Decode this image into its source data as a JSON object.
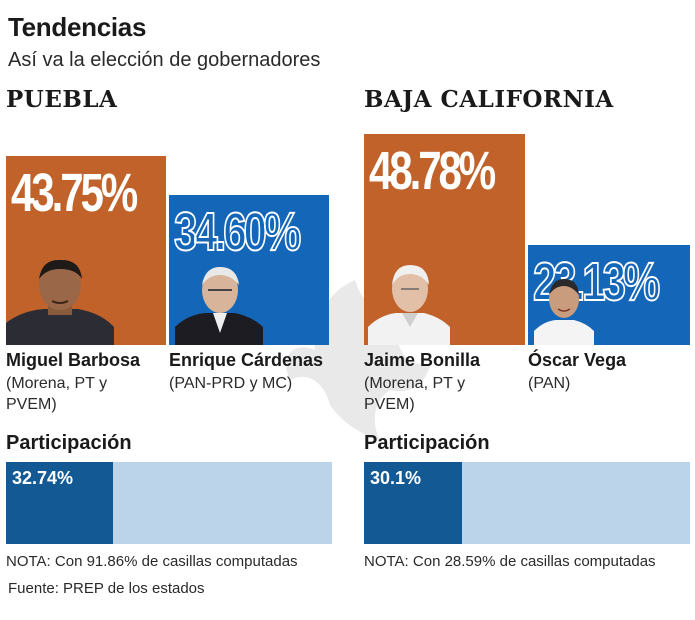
{
  "title": "Tendencias",
  "subtitle": "Así va la elección de gobernadores",
  "colors": {
    "coalition_morena": "#c0622a",
    "coalition_pan": "#1366b8",
    "participation": "#135a94",
    "participation_track": "#bcd4ea"
  },
  "chart_data": [
    {
      "type": "bar",
      "title": "PUEBLA",
      "categories": [
        "Miguel Barbosa",
        "Enrique Cárdenas"
      ],
      "values": [
        43.75,
        34.6
      ],
      "labels": [
        "43.75%",
        "34.60%"
      ],
      "parties": [
        "(Morena, PT y PVEM)",
        "(PAN-PRD y MC)"
      ],
      "ylim": [
        0,
        48.78
      ]
    },
    {
      "type": "bar",
      "title": "BAJA CALIFORNIA",
      "categories": [
        "Jaime Bonilla",
        "Óscar Vega"
      ],
      "values": [
        48.78,
        23.13
      ],
      "labels": [
        "48.78%",
        "23.13%"
      ],
      "parties": [
        "(Morena, PT y PVEM)",
        "(PAN)"
      ],
      "ylim": [
        0,
        48.78
      ]
    }
  ],
  "states": [
    {
      "name": "PUEBLA",
      "candidates": [
        {
          "pct": "43.75%",
          "name": "Miguel Barbosa",
          "party": "(Morena, PT y PVEM)"
        },
        {
          "pct": "34.60%",
          "name": "Enrique Cárdenas",
          "party": "(PAN-PRD y MC)"
        }
      ],
      "participation_label": "Participación",
      "participation_text": "32.74%",
      "participation": 32.74,
      "nota": "NOTA: Con 91.86% de casillas computadas"
    },
    {
      "name": "BAJA CALIFORNIA",
      "candidates": [
        {
          "pct": "48.78%",
          "name": "Jaime Bonilla",
          "party": "(Morena, PT y PVEM)"
        },
        {
          "pct": "23.13%",
          "name": "Óscar Vega",
          "party": "(PAN)"
        }
      ],
      "participation_label": "Participación",
      "participation_text": "30.1%",
      "participation": 30.1,
      "nota": "NOTA: Con 28.59% de casillas computadas"
    }
  ],
  "fuente": "Fuente: PREP de los estados"
}
